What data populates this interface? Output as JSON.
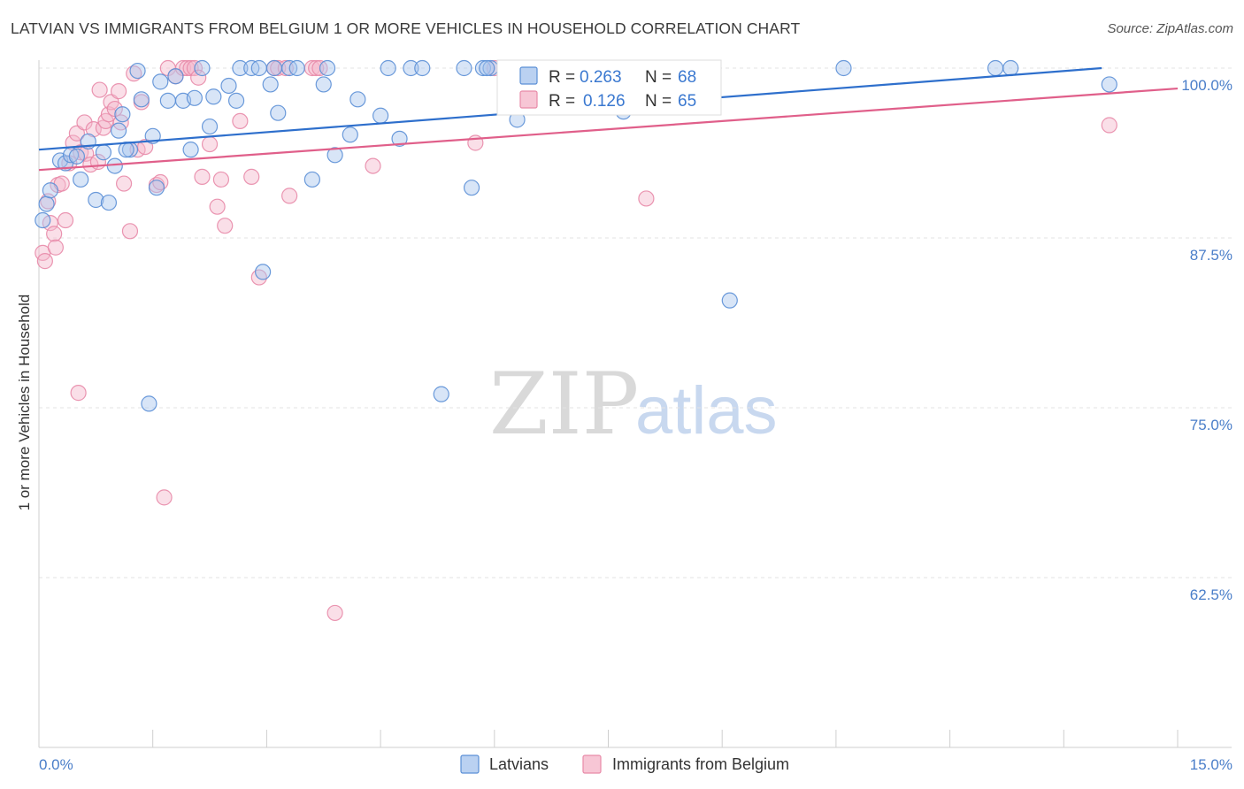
{
  "header": {
    "title": "LATVIAN VS IMMIGRANTS FROM BELGIUM 1 OR MORE VEHICLES IN HOUSEHOLD CORRELATION CHART",
    "source": "Source: ZipAtlas.com"
  },
  "watermark": {
    "zip": "ZIP",
    "atlas": "atlas"
  },
  "legend": {
    "r_label": "R =",
    "n_label": "N =",
    "rows": [
      {
        "r": "0.263",
        "n": "68"
      },
      {
        "r": "0.126",
        "n": "65"
      }
    ]
  },
  "colors": {
    "latvians_fill": "#a9c6ee",
    "latvians_stroke": "#5b8fd6",
    "latvians_line": "#2e6fcc",
    "belgium_fill": "#f5b8cb",
    "belgium_stroke": "#e88aa8",
    "belgium_line": "#e05f8a",
    "tick_label": "#4a7ec9"
  },
  "chart_data": {
    "type": "scatter",
    "title": "LATVIAN VS IMMIGRANTS FROM BELGIUM 1 OR MORE VEHICLES IN HOUSEHOLD CORRELATION CHART",
    "xlabel": "",
    "ylabel": "1 or more Vehicles in Household",
    "xlim": [
      0,
      15
    ],
    "ylim": [
      50,
      100
    ],
    "x_ticks": [
      0,
      15
    ],
    "x_tick_labels": [
      "0.0%",
      "15.0%"
    ],
    "y_ticks": [
      62.5,
      75.0,
      87.5,
      100.0
    ],
    "y_tick_labels": [
      "62.5%",
      "75.0%",
      "87.5%",
      "100.0%"
    ],
    "grid": true,
    "legend_position": "top-center",
    "series": [
      {
        "name": "Latvians",
        "r": 0.263,
        "n": 68,
        "trend": {
          "x0": 0,
          "y0": 94.0,
          "x1": 14.0,
          "y1": 100.0
        },
        "points": [
          [
            0.1,
            90.0
          ],
          [
            0.15,
            91.0
          ],
          [
            0.28,
            93.2
          ],
          [
            0.35,
            93.0
          ],
          [
            0.42,
            93.6
          ],
          [
            0.5,
            93.5
          ],
          [
            0.55,
            91.8
          ],
          [
            0.65,
            94.6
          ],
          [
            0.75,
            90.3
          ],
          [
            0.85,
            93.8
          ],
          [
            0.92,
            90.1
          ],
          [
            1.0,
            92.8
          ],
          [
            1.05,
            95.4
          ],
          [
            1.1,
            96.6
          ],
          [
            1.2,
            94.0
          ],
          [
            1.3,
            99.8
          ],
          [
            1.35,
            97.7
          ],
          [
            1.45,
            75.3
          ],
          [
            1.5,
            95.0
          ],
          [
            1.55,
            91.2
          ],
          [
            1.6,
            99.0
          ],
          [
            1.7,
            97.6
          ],
          [
            1.8,
            99.4
          ],
          [
            1.9,
            97.6
          ],
          [
            2.0,
            94.0
          ],
          [
            2.05,
            97.8
          ],
          [
            2.15,
            100.0
          ],
          [
            2.25,
            95.7
          ],
          [
            2.3,
            97.9
          ],
          [
            2.5,
            98.7
          ],
          [
            2.6,
            97.6
          ],
          [
            2.65,
            100.0
          ],
          [
            2.8,
            100.0
          ],
          [
            2.95,
            85.0
          ],
          [
            3.05,
            98.8
          ],
          [
            3.1,
            100.0
          ],
          [
            3.15,
            96.7
          ],
          [
            3.3,
            100.0
          ],
          [
            3.4,
            100.0
          ],
          [
            3.6,
            91.8
          ],
          [
            3.75,
            98.8
          ],
          [
            3.8,
            100.0
          ],
          [
            3.9,
            93.6
          ],
          [
            4.1,
            95.1
          ],
          [
            4.2,
            97.7
          ],
          [
            4.5,
            96.5
          ],
          [
            4.6,
            100.0
          ],
          [
            4.75,
            94.8
          ],
          [
            4.9,
            100.0
          ],
          [
            5.05,
            100.0
          ],
          [
            5.3,
            76.0
          ],
          [
            5.6,
            100.0
          ],
          [
            5.7,
            91.2
          ],
          [
            5.85,
            100.0
          ],
          [
            5.95,
            100.0
          ],
          [
            6.3,
            96.2
          ],
          [
            7.7,
            96.8
          ],
          [
            8.1,
            100.0
          ],
          [
            8.15,
            99.9
          ],
          [
            9.1,
            82.9
          ],
          [
            10.6,
            100.0
          ],
          [
            12.6,
            100.0
          ],
          [
            12.8,
            100.0
          ],
          [
            14.1,
            98.8
          ],
          [
            0.05,
            88.8
          ],
          [
            1.15,
            94.0
          ],
          [
            2.9,
            100.0
          ],
          [
            5.9,
            100.0
          ]
        ]
      },
      {
        "name": "Immigrants from Belgium",
        "r": 0.126,
        "n": 65,
        "trend": {
          "x0": 0,
          "y0": 92.5,
          "x1": 15.0,
          "y1": 98.5
        },
        "points": [
          [
            0.05,
            86.4
          ],
          [
            0.08,
            85.8
          ],
          [
            0.12,
            90.2
          ],
          [
            0.15,
            88.6
          ],
          [
            0.2,
            87.8
          ],
          [
            0.22,
            86.8
          ],
          [
            0.25,
            91.4
          ],
          [
            0.3,
            91.5
          ],
          [
            0.35,
            88.8
          ],
          [
            0.4,
            93.0
          ],
          [
            0.45,
            94.5
          ],
          [
            0.5,
            95.2
          ],
          [
            0.52,
            76.1
          ],
          [
            0.55,
            93.8
          ],
          [
            0.6,
            96.0
          ],
          [
            0.62,
            93.7
          ],
          [
            0.68,
            92.9
          ],
          [
            0.72,
            95.5
          ],
          [
            0.78,
            93.1
          ],
          [
            0.8,
            98.4
          ],
          [
            0.85,
            95.6
          ],
          [
            0.88,
            96.1
          ],
          [
            0.92,
            96.6
          ],
          [
            0.95,
            97.5
          ],
          [
            1.0,
            97.0
          ],
          [
            1.05,
            98.3
          ],
          [
            1.08,
            96.0
          ],
          [
            1.12,
            91.5
          ],
          [
            1.2,
            88.0
          ],
          [
            1.25,
            99.6
          ],
          [
            1.3,
            94.0
          ],
          [
            1.35,
            97.5
          ],
          [
            1.4,
            94.2
          ],
          [
            1.55,
            91.4
          ],
          [
            1.6,
            91.6
          ],
          [
            1.65,
            68.4
          ],
          [
            1.7,
            100.0
          ],
          [
            1.8,
            99.4
          ],
          [
            1.9,
            100.0
          ],
          [
            1.95,
            100.0
          ],
          [
            2.0,
            100.0
          ],
          [
            2.05,
            100.0
          ],
          [
            2.1,
            99.3
          ],
          [
            2.15,
            92.0
          ],
          [
            2.25,
            94.4
          ],
          [
            2.35,
            89.8
          ],
          [
            2.4,
            91.8
          ],
          [
            2.45,
            88.4
          ],
          [
            2.65,
            96.1
          ],
          [
            2.8,
            92.0
          ],
          [
            2.9,
            84.6
          ],
          [
            3.1,
            100.0
          ],
          [
            3.15,
            100.0
          ],
          [
            3.25,
            100.0
          ],
          [
            3.3,
            90.6
          ],
          [
            3.6,
            100.0
          ],
          [
            3.65,
            100.0
          ],
          [
            3.7,
            100.0
          ],
          [
            3.9,
            59.9
          ],
          [
            4.4,
            92.8
          ],
          [
            5.75,
            94.5
          ],
          [
            6.0,
            100.0
          ],
          [
            6.25,
            100.0
          ],
          [
            8.0,
            90.4
          ],
          [
            14.1,
            95.8
          ]
        ]
      }
    ]
  },
  "bottom_legend": {
    "items": [
      {
        "label": "Latvians"
      },
      {
        "label": "Immigrants from Belgium"
      }
    ]
  }
}
